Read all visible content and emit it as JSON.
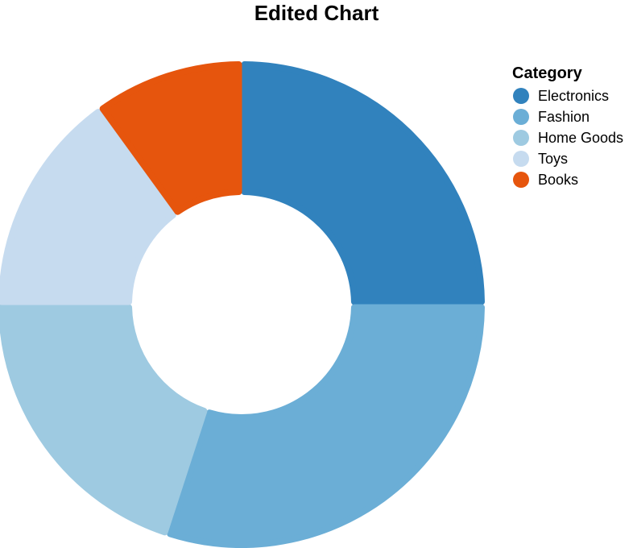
{
  "chart_data": {
    "type": "pie",
    "variant": "donut",
    "title": "Edited Chart",
    "legend_title": "Category",
    "legend_position": "top-right",
    "categories": [
      "Electronics",
      "Fashion",
      "Home Goods",
      "Toys",
      "Books"
    ],
    "values": [
      25,
      30,
      20,
      15,
      10
    ],
    "colors": [
      "#3182bd",
      "#6baed6",
      "#9ecae1",
      "#c6dbef",
      "#e6550d"
    ]
  }
}
